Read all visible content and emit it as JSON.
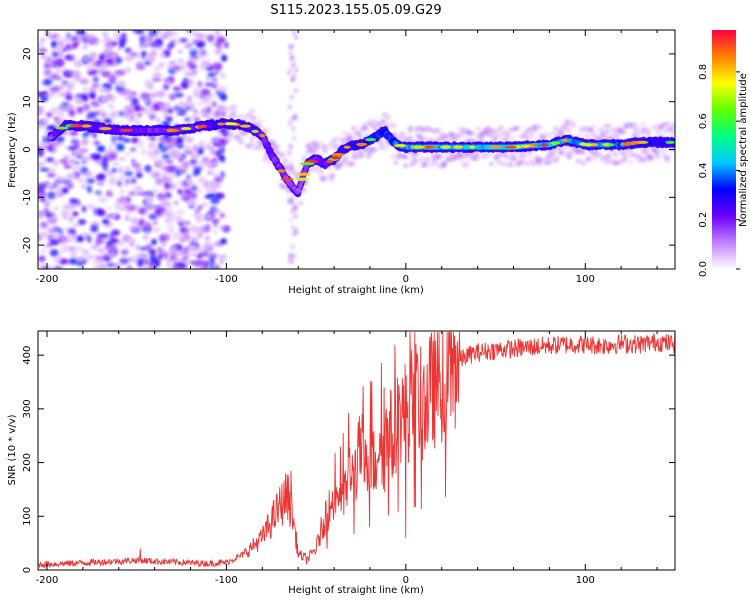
{
  "title": "S115.2023.155.05.09.G29",
  "chart_data": [
    {
      "type": "heatmap",
      "title": "S115.2023.155.05.09.G29",
      "xlabel": "Height of straight line (km)",
      "ylabel": "Frequency (Hz)",
      "xlim": [
        -205,
        150
      ],
      "ylim": [
        -25,
        25
      ],
      "xticks": [
        -200,
        -100,
        0,
        100
      ],
      "yticks": [
        -20,
        -10,
        0,
        10,
        20
      ],
      "colorbar": {
        "label": "Normalized spectral amplitude",
        "range": [
          0,
          0.97
        ],
        "ticks": [
          0.0,
          0.2,
          0.4,
          0.6,
          0.8
        ],
        "tick_labels": [
          "0.0",
          "0.2",
          "0.4",
          "0.6",
          "0.8"
        ],
        "colormap": [
          "#ffffff",
          "#c080ff",
          "#6a00ff",
          "#0000ff",
          "#00c8ff",
          "#00ff80",
          "#60ff00",
          "#ffff00",
          "#ff8000",
          "#ff0040"
        ]
      },
      "ridge": {
        "x": [
          -198,
          -190,
          -180,
          -170,
          -160,
          -150,
          -140,
          -130,
          -120,
          -110,
          -100,
          -90,
          -80,
          -75,
          -70,
          -65,
          -60,
          -55,
          -50,
          -45,
          -40,
          -35,
          -30,
          -25,
          -20,
          -15,
          -12,
          -8,
          -5,
          0,
          10,
          20,
          30,
          40,
          50,
          60,
          70,
          80,
          90,
          100,
          110,
          120,
          130,
          140,
          150
        ],
        "y": [
          2.5,
          5,
          5,
          4.5,
          4,
          4,
          4,
          4,
          4.5,
          5,
          5.5,
          5,
          3,
          -1,
          -4,
          -7,
          -9,
          -3,
          -2,
          -3,
          -2,
          0,
          1,
          1,
          2,
          3,
          4,
          2,
          1,
          0.5,
          0.5,
          0.5,
          0.5,
          0.5,
          0.5,
          0.5,
          0.8,
          1,
          2,
          1,
          1,
          1,
          1.5,
          1.5,
          1.5
        ],
        "amplitude": [
          0.3,
          0.45,
          0.45,
          0.4,
          0.4,
          0.4,
          0.35,
          0.35,
          0.4,
          0.45,
          0.5,
          0.5,
          0.4,
          0.35,
          0.35,
          0.3,
          0.3,
          0.35,
          0.35,
          0.4,
          0.45,
          0.5,
          0.55,
          0.6,
          0.6,
          0.6,
          0.6,
          0.6,
          0.7,
          0.75,
          0.8,
          0.8,
          0.8,
          0.8,
          0.85,
          0.9,
          0.8,
          0.75,
          0.75,
          0.75,
          0.7,
          0.7,
          0.6,
          0.55,
          0.5
        ]
      },
      "noise_region_x": [
        -205,
        -100
      ]
    },
    {
      "type": "line",
      "xlabel": "Height of straight line (km)",
      "ylabel": "SNR (10 * v/v)",
      "xlim": [
        -205,
        150
      ],
      "ylim": [
        0,
        445
      ],
      "xticks": [
        -200,
        -100,
        0,
        100
      ],
      "yticks": [
        0,
        100,
        200,
        300,
        400
      ],
      "series": [
        {
          "name": "SNR",
          "color": "#ee3333",
          "x": [
            -205,
            -190,
            -170,
            -150,
            -130,
            -110,
            -100,
            -90,
            -80,
            -75,
            -70,
            -66,
            -63,
            -60,
            -55,
            -50,
            -45,
            -40,
            -37,
            -35,
            -32,
            -30,
            -27,
            -25,
            -22,
            -20,
            -17,
            -15,
            -12,
            -10,
            -7,
            -5,
            -3,
            -1,
            0,
            3,
            6,
            10,
            15,
            20,
            25,
            30,
            35,
            40,
            50,
            60,
            70,
            80,
            90,
            100,
            110,
            120,
            130,
            140,
            150
          ],
          "y": [
            10,
            12,
            15,
            18,
            15,
            12,
            14,
            30,
            60,
            90,
            120,
            140,
            100,
            30,
            20,
            40,
            100,
            130,
            150,
            120,
            180,
            170,
            200,
            230,
            180,
            220,
            190,
            260,
            210,
            280,
            230,
            290,
            300,
            280,
            300,
            310,
            320,
            300,
            340,
            360,
            380,
            390,
            400,
            405,
            410,
            412,
            415,
            418,
            420,
            420,
            418,
            422,
            420,
            425,
            420
          ],
          "spikes": [
            [
              -148,
              40
            ],
            [
              -64,
              185
            ],
            [
              -35,
              255
            ],
            [
              -19,
              350
            ],
            [
              -12,
              340
            ],
            [
              -4,
              345
            ],
            [
              0,
              60
            ],
            [
              10,
              380
            ],
            [
              150,
              440
            ]
          ]
        }
      ]
    }
  ]
}
